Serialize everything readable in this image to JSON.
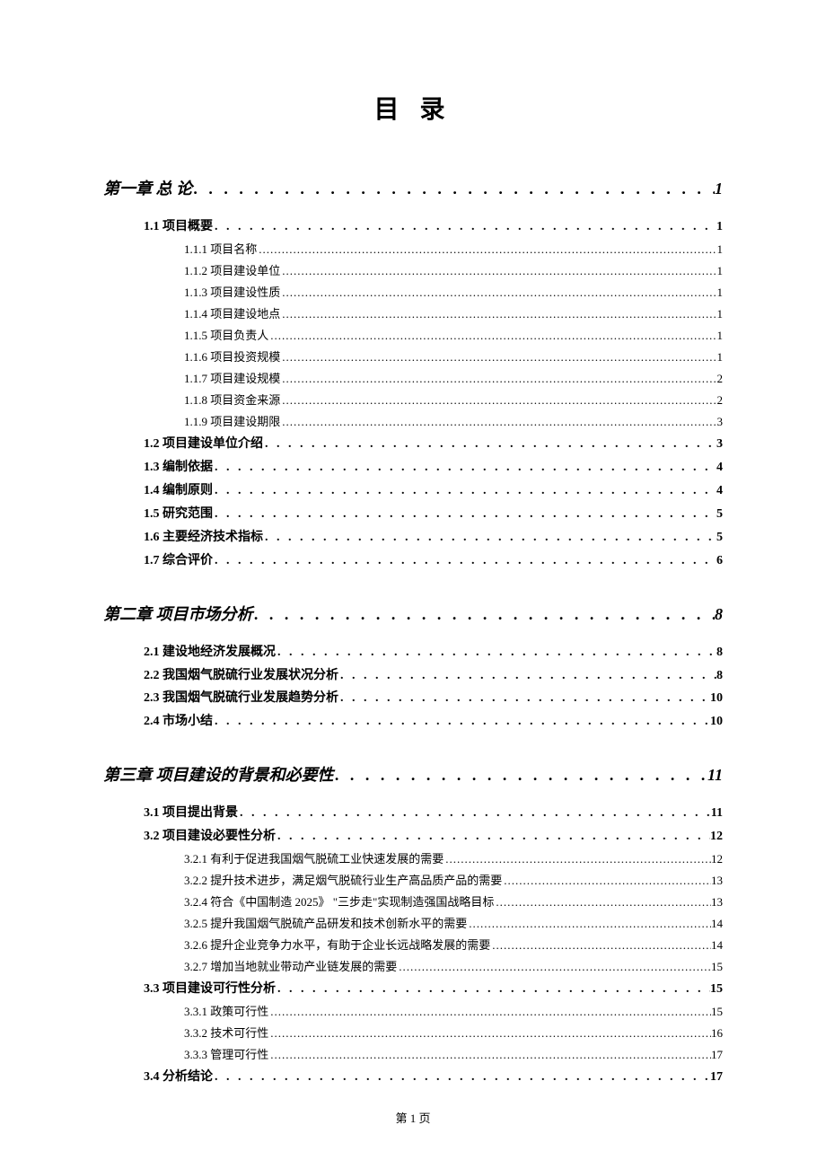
{
  "title": "目 录",
  "footer": "第 1 页",
  "dots1": ". . . . . . . . . . . . . . . . . . . . . . . . . . . . . . . . . . . . . . . . . . . . . . . . . . . . . . . . . . . . . . . . . . . . . . . . . . . .",
  "dots2": ". . . . . . . . . . . . . . . . . . . . . . . . . . . . . . . . . . . . . . . . . . . . . . . . . . . . . . . . . . . . . . . . . . . . . . . . . . . . . . . . . . . . . . . . . . . . . . . . . . . . . . . .",
  "dots3": "..........................................................................................................................................................................................................",
  "entries": [
    {
      "level": 1,
      "label": "第一章 总 论",
      "page": "1"
    },
    {
      "level": 2,
      "label": "1.1 项目概要",
      "page": "1"
    },
    {
      "level": 3,
      "label": "1.1.1 项目名称",
      "page": "1"
    },
    {
      "level": 3,
      "label": "1.1.2 项目建设单位",
      "page": "1"
    },
    {
      "level": 3,
      "label": "1.1.3 项目建设性质",
      "page": "1"
    },
    {
      "level": 3,
      "label": "1.1.4 项目建设地点",
      "page": "1"
    },
    {
      "level": 3,
      "label": "1.1.5 项目负责人",
      "page": "1"
    },
    {
      "level": 3,
      "label": "1.1.6 项目投资规模",
      "page": "1"
    },
    {
      "level": 3,
      "label": "1.1.7 项目建设规模",
      "page": "2"
    },
    {
      "level": 3,
      "label": "1.1.8 项目资金来源",
      "page": "2"
    },
    {
      "level": 3,
      "label": "1.1.9 项目建设期限",
      "page": "3"
    },
    {
      "level": 2,
      "label": "1.2 项目建设单位介绍",
      "page": "3"
    },
    {
      "level": 2,
      "label": "1.3 编制依据",
      "page": "4"
    },
    {
      "level": 2,
      "label": "1.4 编制原则",
      "page": "4"
    },
    {
      "level": 2,
      "label": "1.5 研究范围",
      "page": "5"
    },
    {
      "level": 2,
      "label": "1.6 主要经济技术指标",
      "page": "5"
    },
    {
      "level": 2,
      "label": "1.7 综合评价",
      "page": "6"
    },
    {
      "level": 1,
      "label": "第二章 项目市场分析",
      "page": "8"
    },
    {
      "level": 2,
      "label": "2.1 建设地经济发展概况",
      "page": "8"
    },
    {
      "level": 2,
      "label": "2.2 我国烟气脱硫行业发展状况分析",
      "page": "8"
    },
    {
      "level": 2,
      "label": "2.3 我国烟气脱硫行业发展趋势分析",
      "page": "10"
    },
    {
      "level": 2,
      "label": "2.4 市场小结",
      "page": "10"
    },
    {
      "level": 1,
      "label": "第三章 项目建设的背景和必要性",
      "page": "11"
    },
    {
      "level": 2,
      "label": "3.1 项目提出背景",
      "page": "11"
    },
    {
      "level": 2,
      "label": "3.2 项目建设必要性分析",
      "page": "12"
    },
    {
      "level": 3,
      "label": "3.2.1 有利于促进我国烟气脱硫工业快速发展的需要",
      "page": "12"
    },
    {
      "level": 3,
      "label": "3.2.2 提升技术进步，满足烟气脱硫行业生产高品质产品的需要",
      "page": "13"
    },
    {
      "level": 3,
      "label": "3.2.4 符合《中国制造 2025》 \"三步走\"实现制造强国战略目标",
      "page": "13"
    },
    {
      "level": 3,
      "label": "3.2.5 提升我国烟气脱硫产品研发和技术创新水平的需要",
      "page": "14"
    },
    {
      "level": 3,
      "label": "3.2.6 提升企业竞争力水平，有助于企业长远战略发展的需要",
      "page": "14"
    },
    {
      "level": 3,
      "label": "3.2.7 增加当地就业带动产业链发展的需要",
      "page": "15"
    },
    {
      "level": 2,
      "label": "3.3 项目建设可行性分析",
      "page": "15"
    },
    {
      "level": 3,
      "label": "3.3.1 政策可行性",
      "page": "15"
    },
    {
      "level": 3,
      "label": "3.3.2 技术可行性",
      "page": "16"
    },
    {
      "level": 3,
      "label": "3.3.3 管理可行性",
      "page": "17"
    },
    {
      "level": 2,
      "label": "3.4 分析结论",
      "page": "17"
    }
  ]
}
